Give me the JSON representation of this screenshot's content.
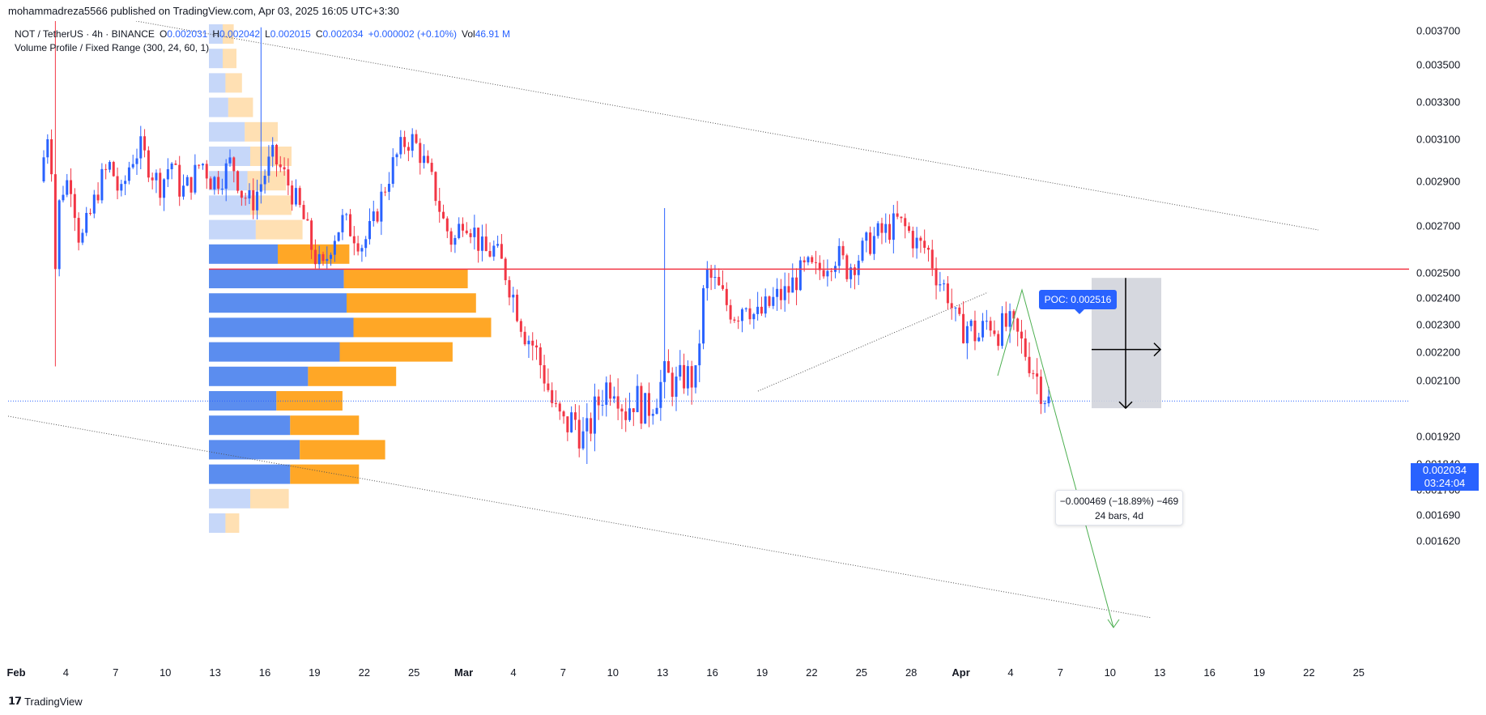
{
  "publisher_line": "mohammadreza5566 published on TradingView.com, Apr 03, 2025 16:05 UTC+3:30",
  "legend": {
    "symbol": "NOT / TetherUS · 4h · BINANCE",
    "o_label": "O",
    "o_value": "0.002031",
    "h_label": "H",
    "h_value": "0.002042",
    "l_label": "L",
    "l_value": "0.002015",
    "c_label": "C",
    "c_value": "0.002034",
    "change": "+0.000002 (+0.10%)",
    "vol_label": "Vol",
    "vol_value": "46.91 M",
    "indicator": "Volume Profile / Fixed Range (300, 24, 60, 1)"
  },
  "price_axis": [
    "0.003700",
    "0.003500",
    "0.003300",
    "0.003100",
    "0.002900",
    "0.002700",
    "0.002500",
    "0.002400",
    "0.002300",
    "0.002200",
    "0.002100",
    "0.001920",
    "0.001840",
    "0.001760",
    "0.001690",
    "0.001620"
  ],
  "last_price": {
    "price": "0.002034",
    "countdown": "03:24:04"
  },
  "poc": {
    "label": "POC: 0.002516"
  },
  "measurement": {
    "line1": "−0.000469 (−18.89%) −469",
    "line2": "24 bars, 4d"
  },
  "footer": {
    "brand": "TradingView",
    "logo_icon": "tv-logo-icon"
  },
  "colors": {
    "up": "#2962ff",
    "down": "#f23645",
    "vp_up": "#5b8def",
    "vp_down": "#ffa726",
    "poc_line": "#f23645",
    "projection": "#4caf50",
    "last_line": "#2962ff"
  },
  "chart_data": {
    "type": "candlestick",
    "symbol": "NOT/USDT",
    "interval": "4h",
    "x_axis": {
      "labels": [
        {
          "text": "Feb",
          "bold": true
        },
        {
          "text": "4"
        },
        {
          "text": "7"
        },
        {
          "text": "10"
        },
        {
          "text": "13"
        },
        {
          "text": "16"
        },
        {
          "text": "19"
        },
        {
          "text": "22"
        },
        {
          "text": "25"
        },
        {
          "text": "Mar",
          "bold": true
        },
        {
          "text": "4"
        },
        {
          "text": "7"
        },
        {
          "text": "10"
        },
        {
          "text": "13"
        },
        {
          "text": "16"
        },
        {
          "text": "19"
        },
        {
          "text": "22"
        },
        {
          "text": "25"
        },
        {
          "text": "28"
        },
        {
          "text": "Apr",
          "bold": true
        },
        {
          "text": "4"
        },
        {
          "text": "7"
        },
        {
          "text": "10"
        },
        {
          "text": "13"
        },
        {
          "text": "16"
        },
        {
          "text": "19"
        },
        {
          "text": "22"
        },
        {
          "text": "25"
        }
      ]
    },
    "y_range": [
      0.00158,
      0.00378
    ],
    "price_path": [
      [
        0,
        0.0029
      ],
      [
        1,
        0.0032
      ],
      [
        1.5,
        0.0025
      ],
      [
        2,
        0.00285
      ],
      [
        3,
        0.00292
      ],
      [
        4,
        0.00262
      ],
      [
        5,
        0.00275
      ],
      [
        6,
        0.0029
      ],
      [
        7,
        0.00298
      ],
      [
        8,
        0.00282
      ],
      [
        9,
        0.003
      ],
      [
        10,
        0.00306
      ],
      [
        11,
        0.00295
      ],
      [
        12,
        0.00288
      ],
      [
        13,
        0.003
      ],
      [
        14,
        0.00285
      ],
      [
        15,
        0.0029
      ],
      [
        16,
        0.003
      ],
      [
        17,
        0.0029
      ],
      [
        18,
        0.00292
      ],
      [
        19,
        0.003
      ],
      [
        20,
        0.00285
      ],
      [
        21,
        0.0028
      ],
      [
        22,
        0.0029
      ],
      [
        23,
        0.00302
      ],
      [
        24,
        0.00295
      ],
      [
        25,
        0.00285
      ],
      [
        26,
        0.00275
      ],
      [
        27,
        0.0026
      ],
      [
        28,
        0.0025
      ],
      [
        29,
        0.00265
      ],
      [
        30,
        0.00272
      ],
      [
        31,
        0.00268
      ],
      [
        32,
        0.00262
      ],
      [
        33,
        0.0027
      ],
      [
        34,
        0.00285
      ],
      [
        35,
        0.00298
      ],
      [
        36,
        0.00308
      ],
      [
        37,
        0.0031
      ],
      [
        38,
        0.003
      ],
      [
        39,
        0.00288
      ],
      [
        40,
        0.00272
      ],
      [
        41,
        0.00262
      ],
      [
        42,
        0.00275
      ],
      [
        43,
        0.00268
      ],
      [
        44,
        0.00258
      ],
      [
        45,
        0.0026
      ],
      [
        46,
        0.00252
      ],
      [
        47,
        0.0024
      ],
      [
        48,
        0.00228
      ],
      [
        49,
        0.00222
      ],
      [
        50,
        0.00212
      ],
      [
        51,
        0.002
      ],
      [
        52,
        0.00195
      ],
      [
        53,
        0.00198
      ],
      [
        54,
        0.0019
      ],
      [
        55,
        0.002
      ],
      [
        56,
        0.00208
      ],
      [
        57,
        0.0021
      ],
      [
        58,
        0.002
      ],
      [
        59,
        0.00205
      ],
      [
        60,
        0.002
      ],
      [
        61,
        0.00205
      ],
      [
        62,
        0.00212
      ],
      [
        63,
        0.00208
      ],
      [
        64,
        0.00212
      ],
      [
        65,
        0.0021
      ],
      [
        66,
        0.0025
      ],
      [
        67,
        0.00245
      ],
      [
        68,
        0.00238
      ],
      [
        69,
        0.00234
      ],
      [
        70,
        0.0024
      ],
      [
        71,
        0.00232
      ],
      [
        72,
        0.00236
      ],
      [
        73,
        0.0024
      ],
      [
        74,
        0.00242
      ],
      [
        75,
        0.00248
      ],
      [
        76,
        0.00252
      ],
      [
        77,
        0.0025
      ],
      [
        78,
        0.00255
      ],
      [
        79,
        0.00258
      ],
      [
        80,
        0.00252
      ],
      [
        81,
        0.00256
      ],
      [
        82,
        0.00262
      ],
      [
        83,
        0.00266
      ],
      [
        84,
        0.00268
      ],
      [
        85,
        0.00272
      ],
      [
        86,
        0.00268
      ],
      [
        87,
        0.00262
      ],
      [
        88,
        0.0026
      ],
      [
        89,
        0.00248
      ],
      [
        90,
        0.00242
      ],
      [
        91,
        0.00228
      ],
      [
        92,
        0.0023
      ],
      [
        93,
        0.00225
      ],
      [
        94,
        0.00232
      ],
      [
        95,
        0.00228
      ],
      [
        96,
        0.0023
      ],
      [
        97,
        0.00225
      ],
      [
        98,
        0.00218
      ],
      [
        99,
        0.0021
      ],
      [
        100,
        0.00203
      ]
    ],
    "volume_profile": {
      "rows": [
        {
          "up": 0.1,
          "down": 0.08
        },
        {
          "up": 0.1,
          "down": 0.1
        },
        {
          "up": 0.12,
          "down": 0.12
        },
        {
          "up": 0.14,
          "down": 0.18
        },
        {
          "up": 0.26,
          "down": 0.24
        },
        {
          "up": 0.3,
          "down": 0.3
        },
        {
          "up": 0.28,
          "down": 0.28
        },
        {
          "up": 0.3,
          "down": 0.3
        },
        {
          "up": 0.34,
          "down": 0.34
        },
        {
          "up": 0.5,
          "down": 0.52
        },
        {
          "up": 0.98,
          "down": 0.9
        },
        {
          "up": 1.0,
          "down": 0.94
        },
        {
          "up": 1.05,
          "down": 1.0
        },
        {
          "up": 0.95,
          "down": 0.82
        },
        {
          "up": 0.72,
          "down": 0.64
        },
        {
          "up": 0.49,
          "down": 0.48
        },
        {
          "up": 0.59,
          "down": 0.5
        },
        {
          "up": 0.66,
          "down": 0.62
        },
        {
          "up": 0.59,
          "down": 0.5
        },
        {
          "up": 0.3,
          "down": 0.28
        },
        {
          "up": 0.12,
          "down": 0.1
        }
      ]
    },
    "poc_price": 0.002516,
    "last_price": 0.002034,
    "measure": {
      "from": 0.00248,
      "to": 0.002011,
      "change": "−0.000469",
      "percent": "−18.89%",
      "bars": 24,
      "span": "4d"
    }
  }
}
